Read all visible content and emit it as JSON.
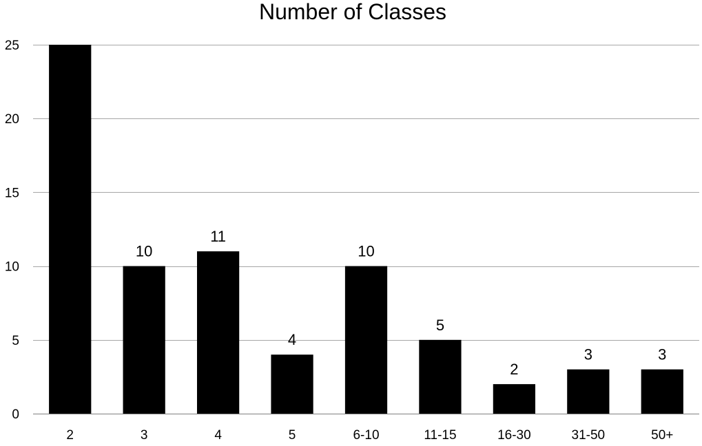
{
  "chart_data": {
    "type": "bar",
    "title": "Number of Classes",
    "xlabel": "",
    "ylabel": "",
    "categories": [
      "2",
      "3",
      "4",
      "5",
      "6-10",
      "11-15",
      "16-30",
      "31-50",
      "50+"
    ],
    "values": [
      25,
      10,
      11,
      4,
      10,
      5,
      2,
      3,
      3
    ],
    "data_labels": [
      "",
      "10",
      "11",
      "4",
      "10",
      "5",
      "2",
      "3",
      "3"
    ],
    "ylim": [
      0,
      25
    ],
    "yticks": [
      0,
      5,
      10,
      15,
      20,
      25
    ],
    "grid": true,
    "legend": "none",
    "bar_color": "#000000",
    "grid_color": "#a6a6a6"
  }
}
